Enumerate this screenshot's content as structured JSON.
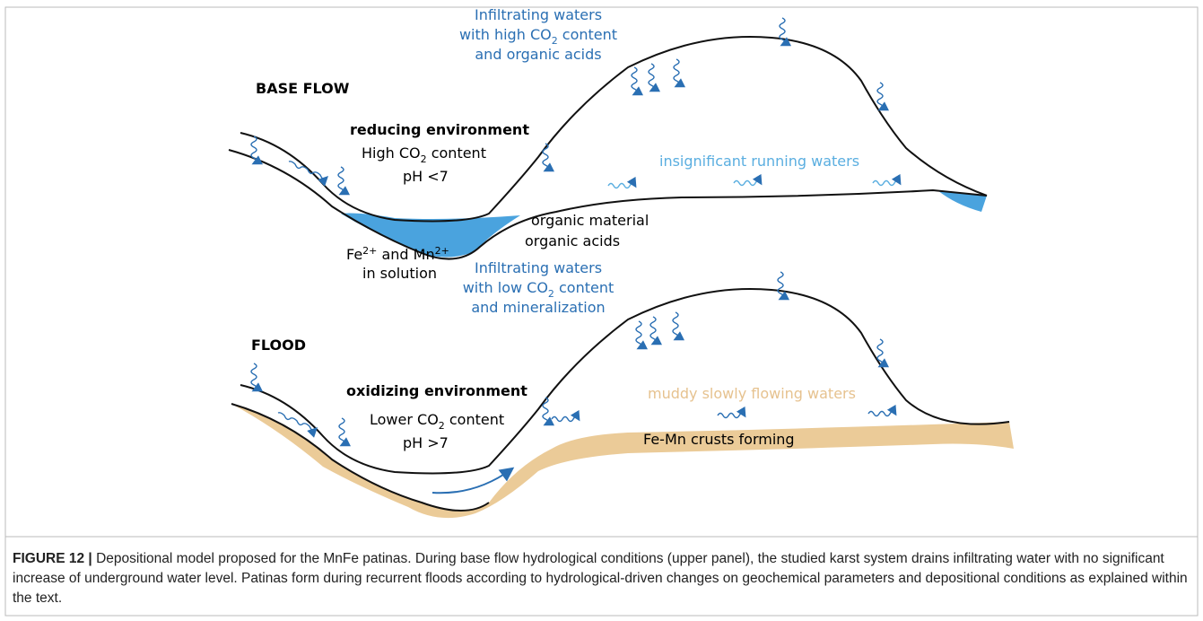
{
  "panels": [
    {
      "title": "BASE FLOW",
      "environment": "reducing environment",
      "infiltration": [
        "Infiltrating waters",
        [
          "with high CO",
          "2",
          " content"
        ],
        "and organic acids"
      ],
      "co2": [
        "High CO",
        "2",
        " content"
      ],
      "ph": "pH <7",
      "organics": [
        "organic material",
        "organic acids"
      ],
      "metals": [
        "Fe",
        "2+",
        " and Mn",
        "2+"
      ],
      "metals_2": "in solution",
      "running": "insignificant running waters"
    },
    {
      "title": "FLOOD",
      "environment": "oxidizing environment",
      "infiltration": [
        "Infiltrating waters",
        [
          "with low CO",
          "2",
          " content"
        ],
        "and mineralization"
      ],
      "co2": [
        "Lower CO",
        "2",
        " content"
      ],
      "ph": "pH >7",
      "running": "muddy slowly flowing waters",
      "crusts": "Fe-Mn crusts forming"
    }
  ],
  "caption": {
    "label": "FIGURE 12 |",
    "text": "Depositional model proposed for the MnFe patinas. During base flow hydrological conditions (upper panel), the studied karst system drains infiltrating water with no significant increase of underground water level. Patinas form during recurrent floods according to hydrological-driven changes on geochemical parameters and depositional conditions as explained within the text."
  }
}
